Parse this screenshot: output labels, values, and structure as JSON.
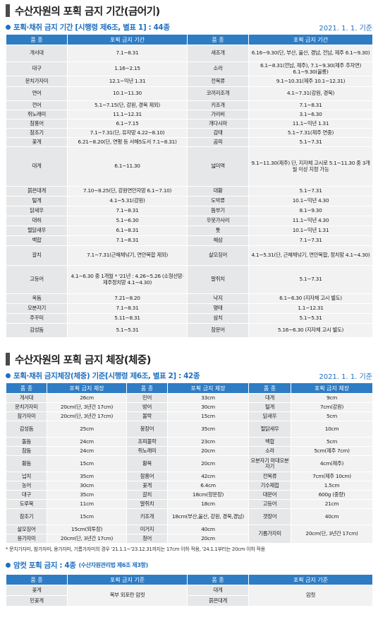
{
  "s1": {
    "title": "수산자원의 포획 금지 기간(금어기)",
    "subtitle": "포획·채취 금지 기간 [시행령 제6조, 별표 1] : 44종",
    "date": "2021. 1. 1. 기준",
    "headers": [
      "품 종",
      "포획 금지 기간",
      "품 종",
      "포획 금지 기간"
    ],
    "rows": [
      [
        "개서대",
        "7.1~8.31",
        "새조개",
        "6.16~9.30(단, 부산, 울산, 경남, 전남, 제주 6.1~9.30)"
      ],
      [
        "대구",
        "1.16~2.15",
        "소라",
        "6.1~8.31(전남, 제주), 7.1~9.30(제주 추자면) 6.1~9.30(울릉)"
      ],
      [
        "문치가자미",
        "12.1~익년 1.31",
        "전복류",
        "9.1~10.31(제주 10.1~12.31)"
      ],
      [
        "연어",
        "10.1~11.30",
        "코끼리조개",
        "4.1~7.31(강원, 경북)"
      ],
      [
        "전어",
        "5.1~7.15(단, 강원, 경북 제외)",
        "키조개",
        "7.1~8.31"
      ],
      [
        "쥐노래미",
        "11.1~12.31",
        "가리비",
        "3.1~6.30"
      ],
      [
        "참홍어",
        "6.1~7.15",
        "개다시마",
        "11.1~익년 1.31"
      ],
      [
        "참조기",
        "7.1~7.31(단, 유자망 4.22~8.10)",
        "감태",
        "5.1~7.31(제주 연중)"
      ],
      [
        "꽃게",
        "6.21~8.20(단, 연평 등 서해5도서 7.1~8.31)",
        "곰피",
        "5.1~7.31"
      ],
      [
        "대게",
        "6.1~11.30",
        "넓미역",
        "9.1~11.30(제주) 단, 지자체 고시로 5.1~11.30 중 3개월 이상 지정 가능"
      ],
      [
        "붉은대게",
        "7.10~8.25(단, 강원연안자망 6.1~7.10)",
        "대황",
        "5.1~7.31"
      ],
      [
        "털게",
        "4.1~5.31(강원)",
        "도박류",
        "10.1~익년 4.30"
      ],
      [
        "닭새우",
        "7.1~8.31",
        "뜸부기",
        "8.1~9.30"
      ],
      [
        "대하",
        "5.1~6.30",
        "우뭇가사리",
        "11.1~익년 4.30"
      ],
      [
        "펄닭새우",
        "6.1~8.31",
        "톳",
        "10.1~익년 1.31"
      ],
      [
        "백합",
        "7.1~8.31",
        "해삼",
        "7.1~7.31"
      ],
      [
        "갈치",
        "7.1~7.31(근해채낚기, 연안복합 제외)",
        "살오징어",
        "4.1~5.31(단, 근해채낚기, 연안복합, 정치망 4.1~4.30)"
      ],
      [
        "고등어",
        "4.1~6.30 중 1개월 * '21년 : 4.26~5.26 (소형선망·제주정치망 4.1~4.30)",
        "말쥐치",
        "5.1~7.31"
      ],
      [
        "옥돔",
        "7.21~8.20",
        "낙지",
        "6.1~6.30 (지자체 고시 별도)"
      ],
      [
        "오분자기",
        "7.1~8.31",
        "명태",
        "1.1~12.31"
      ],
      [
        "주꾸미",
        "5.11~8.31",
        "삼치",
        "5.1~5.31"
      ],
      [
        "감성돔",
        "5.1~5.31",
        "참문어",
        "5.16~6.30 (지자체 고시 별도)"
      ]
    ]
  },
  "s2": {
    "title": "수산자원의 포획 금지 체장(체중)",
    "subtitle": "포획·채취 금지체장(체중) 기준[시행령 제6조, 별표 2] : 42종",
    "date": "2021. 1. 1. 기준",
    "headers": [
      "품 종",
      "포획 금지 체장",
      "품 종",
      "포획 금지 체장",
      "품 종",
      "포획 금지 체장"
    ],
    "rows": [
      [
        "개서대",
        "26cm",
        "민어",
        "33cm",
        "대게",
        "9cm"
      ],
      [
        "문치가자미",
        "20cm(단, 3년간 17cm)",
        "방어",
        "30cm",
        "털게",
        "7cm(강원)"
      ],
      [
        "참가자미",
        "20cm(단, 3년간 17cm)",
        "볼락",
        "15cm",
        "닭새우",
        "5cm"
      ],
      [
        "감성돔",
        "25cm",
        "붕장어",
        "35cm",
        "펄닭새우",
        "10cm"
      ],
      [
        "돌돔",
        "24cm",
        "조피볼락",
        "23cm",
        "백합",
        "5cm"
      ],
      [
        "참돔",
        "24cm",
        "쥐노래미",
        "20cm",
        "소라",
        "5cm(제주 7cm)"
      ],
      [
        "황돔",
        "15cm",
        "황복",
        "20cm",
        "오분자기 마대오분자기",
        "4cm(제주)"
      ],
      [
        "넙치",
        "35cm",
        "참홍어",
        "42cm",
        "전복류",
        "7cm(제주 10cm)"
      ],
      [
        "농어",
        "30cm",
        "꽃게",
        "6.4cm",
        "기수재첩",
        "1.5cm"
      ],
      [
        "대구",
        "35cm",
        "갈치",
        "18cm(항문장)",
        "대문어",
        "600g (중량)"
      ],
      [
        "도루묵",
        "11cm",
        "말쥐치",
        "18cm",
        "고등어",
        "21cm"
      ],
      [
        "참조기",
        "15cm",
        "키조개",
        "18cm(부산,울산, 강원, 경북,경남)",
        "갯장어",
        "40cm"
      ],
      [
        "살오징어",
        "15cm(외투장)",
        "미거지",
        "40cm",
        "기름가자미",
        "20cm(단, 3년간 17cm)"
      ],
      [
        "용가자미",
        "20cm(단, 3년간 17cm)",
        "청어",
        "20cm",
        "",
        ""
      ]
    ],
    "note": "* 문치가자미, 참가자미, 용가자미, 기름가자미의 경우 '21.1.1~'23.12.31까지는 17cm 이하 적용, '24.1.1부터는 20cm 이하 적용"
  },
  "s3": {
    "subtitle": "암컷 포획 금지 : 4종",
    "law": "(수산자원관리법 제6조 제3항)",
    "headers": [
      "품 종",
      "포획 금지 기준",
      "품 종",
      "포획 금지 기준"
    ],
    "rows": [
      [
        "꽃게",
        "복부 외포란 암컷",
        "대게",
        "암컷"
      ],
      [
        "민꽃게",
        "",
        "붉은대게",
        ""
      ]
    ]
  },
  "colors": {
    "header_blue": "#2e7cc4",
    "accent_blue": "#1f6fbf",
    "name_cell": "#e6e7e8",
    "value_cell": "#f2f2f2"
  }
}
